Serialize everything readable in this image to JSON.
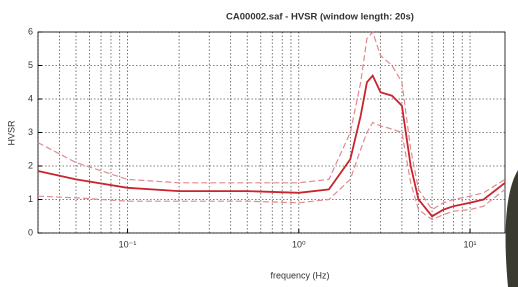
{
  "chart_data": {
    "type": "line",
    "title": "CA00002.saf - HVSR (window length: 20s)",
    "xlabel": "frequency (Hz)",
    "ylabel": "HVSR",
    "xscale": "log",
    "grid": true,
    "xlim": [
      0.03,
      16
    ],
    "ylim": [
      0,
      6
    ],
    "xticks": [
      {
        "value": 0.1,
        "label": "10⁻¹"
      },
      {
        "value": 1,
        "label": "10⁰"
      },
      {
        "value": 10,
        "label": "10¹"
      }
    ],
    "xminorticks": [
      0.03,
      0.04,
      0.05,
      0.06,
      0.07,
      0.08,
      0.09,
      0.2,
      0.3,
      0.4,
      0.5,
      0.6,
      0.7,
      0.8,
      0.9,
      2,
      3,
      4,
      5,
      6,
      7,
      8,
      9
    ],
    "yticks": [
      0,
      1,
      2,
      3,
      4,
      5,
      6
    ],
    "x": [
      0.03,
      0.05,
      0.1,
      0.2,
      0.5,
      1,
      1.5,
      2,
      2.3,
      2.5,
      2.7,
      3,
      3.5,
      4,
      4.5,
      5,
      6,
      7,
      8,
      10,
      12,
      16
    ],
    "series": [
      {
        "color": "#e08a90",
        "dashed": true,
        "values": [
          2.7,
          2.1,
          1.6,
          1.5,
          1.5,
          1.5,
          1.6,
          3.0,
          4.5,
          5.8,
          6.0,
          5.3,
          5.0,
          4.5,
          2.5,
          1.3,
          0.7,
          0.9,
          1.0,
          1.1,
          1.2,
          1.6
        ]
      },
      {
        "color": "#c8262e",
        "dashed": false,
        "values": [
          1.85,
          1.6,
          1.35,
          1.25,
          1.25,
          1.2,
          1.3,
          2.2,
          3.5,
          4.5,
          4.7,
          4.2,
          4.1,
          3.8,
          2.0,
          1.0,
          0.5,
          0.7,
          0.8,
          0.9,
          1.0,
          1.5
        ]
      },
      {
        "color": "#e08a90",
        "dashed": true,
        "values": [
          1.1,
          1.05,
          0.95,
          0.95,
          0.95,
          0.9,
          1.0,
          1.6,
          2.5,
          3.0,
          3.3,
          3.2,
          3.1,
          3.0,
          1.5,
          0.7,
          0.4,
          0.55,
          0.65,
          0.7,
          0.8,
          1.3
        ]
      }
    ]
  }
}
